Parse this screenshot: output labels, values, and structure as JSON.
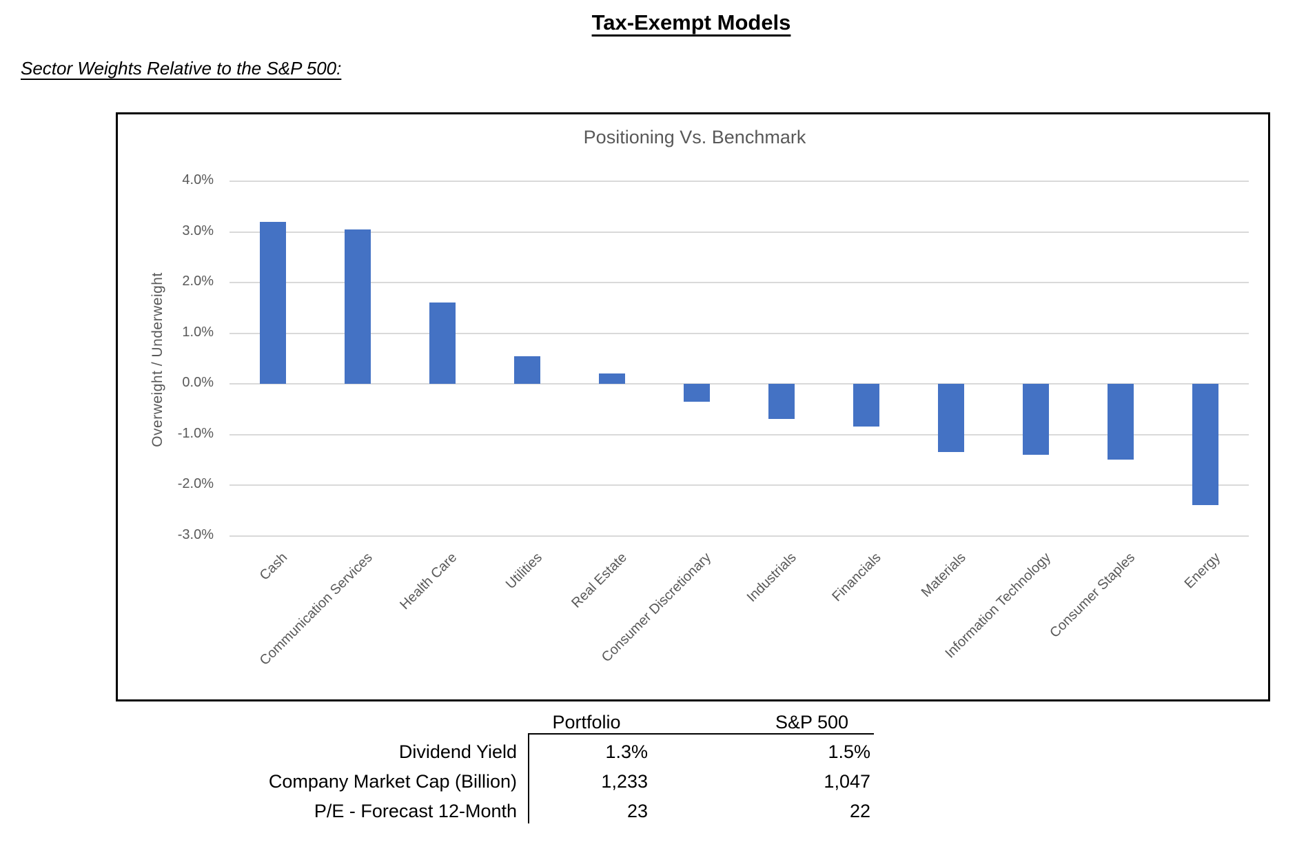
{
  "page": {
    "title": "Tax-Exempt Models",
    "subtitle": "Sector Weights Relative to the S&P 500:"
  },
  "chart": {
    "title": "Positioning Vs. Benchmark",
    "y_axis_title": "Overweight / Underweight",
    "bar_color": "#4472C4",
    "gridline_color": "#D9D9D9",
    "axis_text_color": "#595959"
  },
  "chart_data": {
    "type": "bar",
    "title": "Positioning Vs. Benchmark",
    "ylabel": "Overweight / Underweight",
    "xlabel": "",
    "categories": [
      "Cash",
      "Communication Services",
      "Health Care",
      "Utilities",
      "Real Estate",
      "Consumer Discretionary",
      "Industrials",
      "Financials",
      "Materials",
      "Information Technology",
      "Consumer Staples",
      "Energy"
    ],
    "values": [
      3.2,
      3.05,
      1.6,
      0.55,
      0.2,
      -0.35,
      -0.7,
      -0.85,
      -1.35,
      -1.4,
      -1.5,
      -2.4
    ],
    "y_ticks": [
      "4.0%",
      "3.0%",
      "2.0%",
      "1.0%",
      "0.0%",
      "-1.0%",
      "-2.0%",
      "-3.0%"
    ],
    "ylim": [
      -3.0,
      4.0
    ],
    "grid": true,
    "legend": false,
    "bar_color": "#4472C4"
  },
  "table": {
    "columns": [
      "Portfolio",
      "S&P 500"
    ],
    "rows": [
      {
        "label": "Dividend Yield",
        "portfolio": "1.3%",
        "sp500": "1.5%"
      },
      {
        "label": "Company Market Cap (Billion)",
        "portfolio": "1,233",
        "sp500": "1,047"
      },
      {
        "label": "P/E - Forecast 12-Month",
        "portfolio": "23",
        "sp500": "22"
      }
    ]
  }
}
